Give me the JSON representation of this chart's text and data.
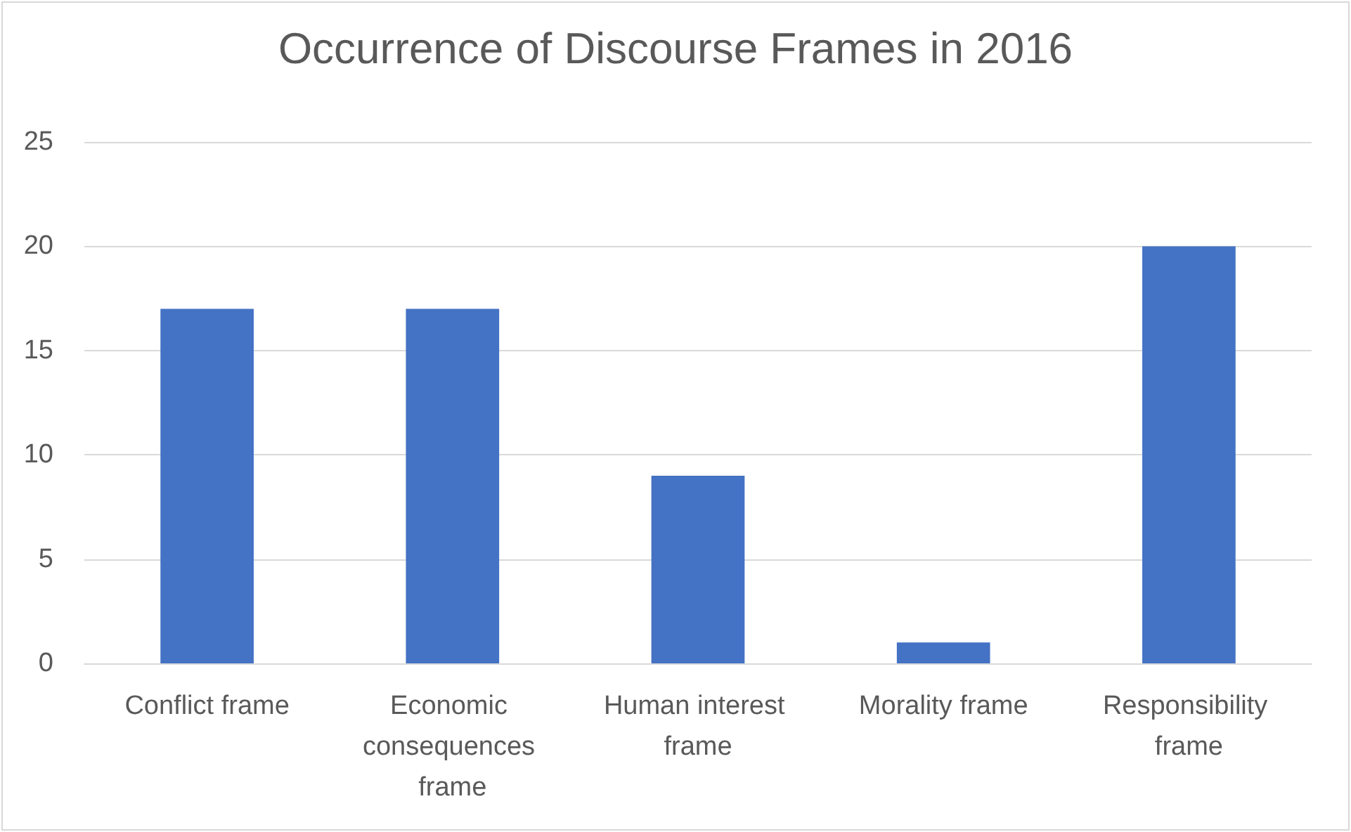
{
  "chart_data": {
    "type": "bar",
    "title": "Occurrence of Discourse Frames in 2016",
    "categories": [
      "Conflict frame",
      "Economic consequences frame",
      "Human interest frame",
      "Morality frame",
      "Responsibility frame"
    ],
    "values": [
      17,
      17,
      9,
      1,
      20
    ],
    "color": "#4472c4",
    "ylim": [
      0,
      25
    ],
    "yticks": [
      0,
      5,
      10,
      15,
      20,
      25
    ],
    "grid": "y"
  }
}
